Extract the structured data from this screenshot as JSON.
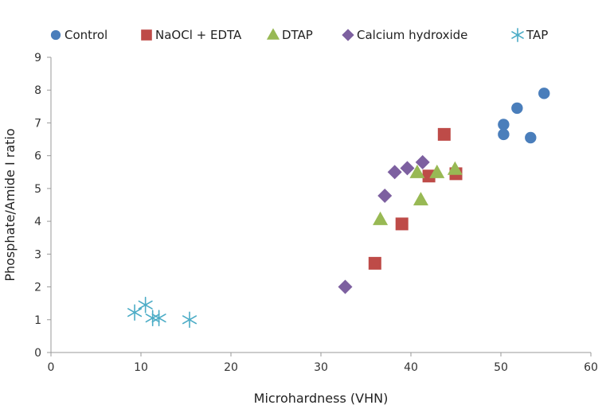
{
  "chart_data": {
    "type": "scatter",
    "xlabel": "Microhardness (VHN)",
    "ylabel": "Phosphate/Amide I ratio",
    "xlim": [
      0,
      60
    ],
    "ylim": [
      0,
      9
    ],
    "xticks": [
      0,
      10,
      20,
      30,
      40,
      50,
      60
    ],
    "yticks": [
      0,
      1,
      2,
      3,
      4,
      5,
      6,
      7,
      8,
      9
    ],
    "legend_position": "top",
    "series": [
      {
        "name": "Control",
        "marker": "circle",
        "color": "#4a7ebb",
        "points": [
          [
            50.3,
            6.95
          ],
          [
            50.3,
            6.65
          ],
          [
            51.8,
            7.45
          ],
          [
            53.3,
            6.55
          ],
          [
            54.8,
            7.9
          ]
        ]
      },
      {
        "name": "NaOCl + EDTA",
        "marker": "square",
        "color": "#be4b48",
        "points": [
          [
            36.0,
            2.72
          ],
          [
            39.0,
            3.92
          ],
          [
            42.0,
            5.38
          ],
          [
            43.7,
            6.65
          ],
          [
            45.0,
            5.45
          ]
        ]
      },
      {
        "name": "DTAP",
        "marker": "triangle",
        "color": "#98b954",
        "points": [
          [
            36.6,
            4.05
          ],
          [
            40.7,
            5.48
          ],
          [
            41.1,
            4.65
          ],
          [
            42.9,
            5.48
          ],
          [
            44.9,
            5.58
          ]
        ]
      },
      {
        "name": "Calcium hydroxide",
        "marker": "diamond",
        "color": "#7d60a0",
        "points": [
          [
            32.7,
            2.0
          ],
          [
            37.1,
            4.78
          ],
          [
            38.2,
            5.5
          ],
          [
            39.6,
            5.62
          ],
          [
            41.3,
            5.8
          ]
        ]
      },
      {
        "name": "TAP",
        "marker": "asterisk",
        "color": "#4bacc6",
        "points": [
          [
            9.3,
            1.22
          ],
          [
            10.5,
            1.45
          ],
          [
            11.3,
            1.05
          ],
          [
            12.0,
            1.05
          ],
          [
            15.4,
            1.0
          ]
        ]
      }
    ]
  }
}
